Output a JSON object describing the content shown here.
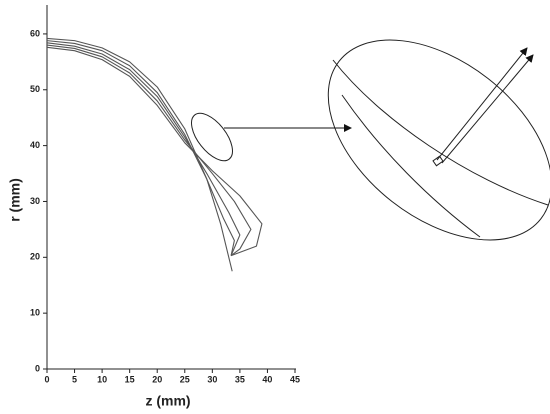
{
  "chart_data": {
    "type": "line",
    "xlabel": "z (mm)",
    "ylabel": "r (mm)",
    "xlim": [
      0,
      45
    ],
    "xticks": [
      0,
      5,
      10,
      15,
      20,
      25,
      30,
      35,
      40,
      45
    ],
    "ylim": [
      0,
      65
    ],
    "yticks": [
      0,
      10,
      20,
      30,
      40,
      50,
      60
    ],
    "series": [
      {
        "color": "#555555",
        "x": [
          0,
          5,
          10,
          15,
          20,
          25,
          29,
          31.5,
          33.6
        ],
        "values": [
          59.2,
          58.8,
          57.5,
          55,
          50.5,
          43,
          34,
          26,
          17.5
        ]
      },
      {
        "color": "#555555",
        "x": [
          0,
          5,
          10,
          15,
          20,
          25,
          29,
          32,
          34,
          33.4
        ],
        "values": [
          58.8,
          58.3,
          57,
          54.3,
          49.5,
          42,
          34,
          27,
          23,
          20.3
        ]
      },
      {
        "color": "#555555",
        "x": [
          0,
          5,
          10,
          15,
          20,
          25,
          29,
          33,
          35,
          33.4
        ],
        "values": [
          58.4,
          57.8,
          56.4,
          53.6,
          48.8,
          41.5,
          35,
          28,
          24,
          20.3
        ]
      },
      {
        "color": "#555555",
        "x": [
          0,
          5,
          10,
          15,
          20,
          25,
          30,
          34,
          37,
          35,
          33.4
        ],
        "values": [
          58,
          57.4,
          55.9,
          53,
          48,
          41,
          35,
          30,
          25,
          21.5,
          20.3
        ]
      },
      {
        "color": "#555555",
        "x": [
          0,
          5,
          10,
          15,
          20,
          25,
          30,
          35,
          39,
          38,
          33.4
        ],
        "values": [
          57.6,
          57,
          55.4,
          52.4,
          47.2,
          40.5,
          35.5,
          31,
          26,
          22,
          20.3
        ]
      }
    ]
  }
}
